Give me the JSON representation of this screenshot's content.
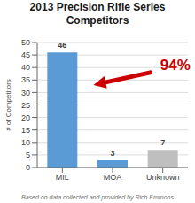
{
  "chart_data": {
    "type": "bar",
    "title": "2013 Precision Rifle Series\nCompetitors",
    "categories": [
      "MIL",
      "MOA",
      "Unknown"
    ],
    "values": [
      46,
      3,
      7
    ],
    "colors": [
      "#5B9BD5",
      "#5B9BD5",
      "#BFBFBF"
    ],
    "ylim": [
      0,
      50
    ],
    "yticks": [
      0,
      5,
      10,
      15,
      20,
      25,
      30,
      35,
      40,
      45,
      50
    ],
    "ylabel": "# of Competitors",
    "grid": true,
    "data_labels": true,
    "annotations": [
      {
        "text": "94%",
        "color": "#CC0000"
      }
    ],
    "footnote": "Based on data collected and provided by Rich Emmons"
  }
}
